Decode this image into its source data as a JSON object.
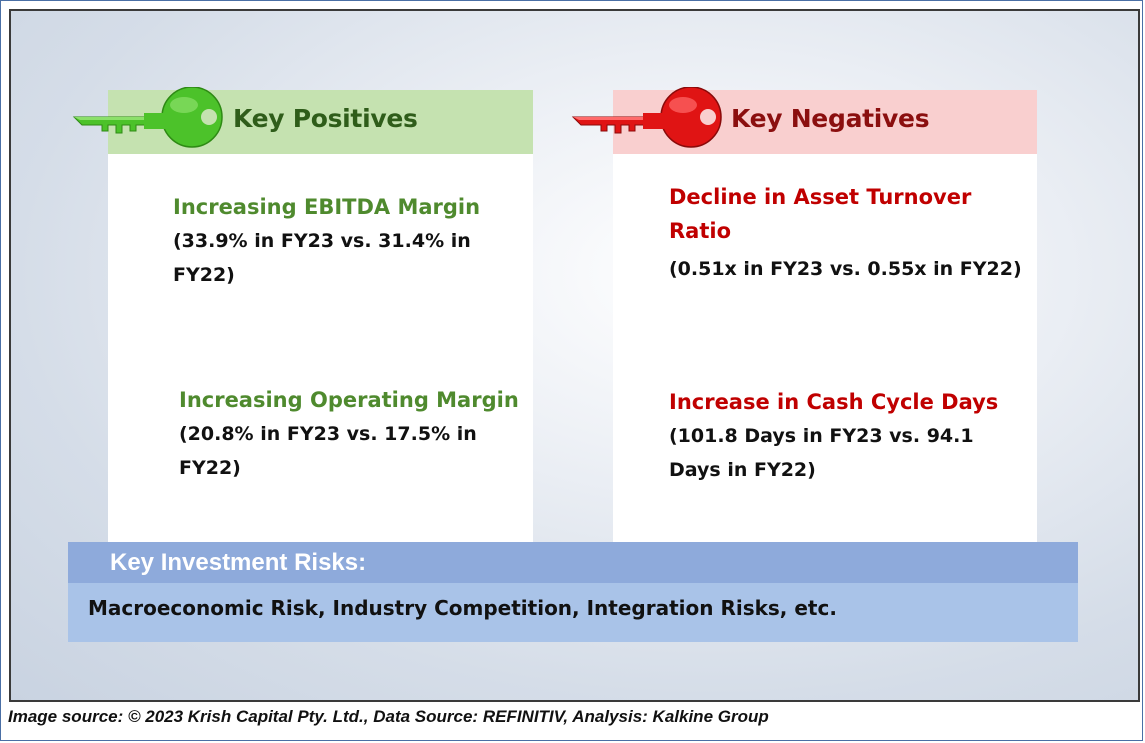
{
  "positives": {
    "title": "Key Positives",
    "color": "#4f8a2e",
    "items": [
      {
        "title": "Increasing EBITDA Margin",
        "detail_line1": "(33.9% in FY23 vs. 31.4% in",
        "detail_line2": "FY22)"
      },
      {
        "title": "Increasing Operating Margin",
        "detail_line1": "(20.8% in FY23 vs. 17.5% in",
        "detail_line2": "FY22)"
      }
    ],
    "icon": "green-key-icon"
  },
  "negatives": {
    "title": "Key Negatives",
    "color": "#c00000",
    "items": [
      {
        "title_line1": "Decline in Asset Turnover",
        "title_line2": "Ratio",
        "detail_line1": "(0.51x in FY23 vs. 0.55x in FY22)"
      },
      {
        "title": "Increase in Cash Cycle Days",
        "detail_line1": "(101.8 Days in FY23 vs. 94.1",
        "detail_line2": "Days in FY22)"
      }
    ],
    "icon": "red-key-icon"
  },
  "risks": {
    "title": "Key Investment Risks:",
    "text": "Macroeconomic Risk, Industry Competition, Integration Risks, etc."
  },
  "footer": {
    "source": "Image source: © 2023 Krish Capital Pty. Ltd., Data Source: REFINITIV, Analysis: Kalkine Group"
  }
}
